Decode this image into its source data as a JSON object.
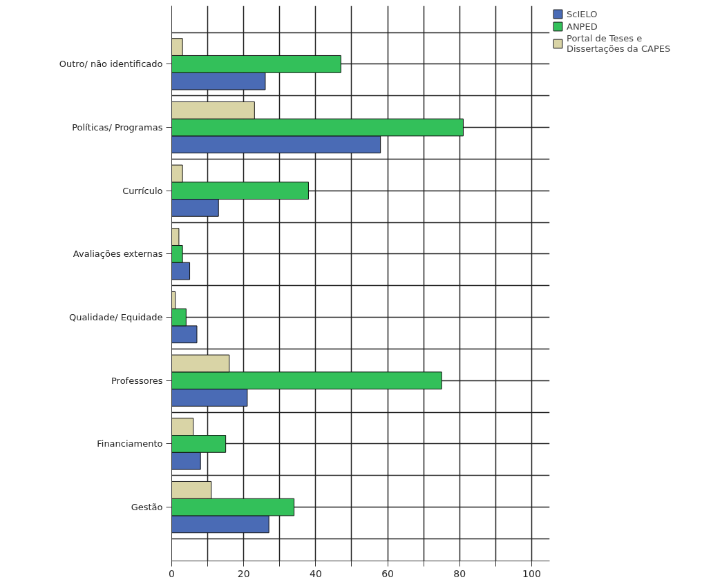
{
  "chart_data": {
    "type": "bar",
    "orientation": "horizontal",
    "categories": [
      "Outro/ não identificado",
      "Políticas/ Programas",
      "Currículo",
      "Avaliações externas",
      "Qualidade/ Equidade",
      "Professores",
      "Financiamento",
      "Gestão"
    ],
    "series": [
      {
        "name": "ScIELO",
        "color": "#4a6bb5",
        "values": [
          26,
          58,
          13,
          5,
          7,
          21,
          8,
          27
        ]
      },
      {
        "name": "ANPED",
        "color": "#33c05a",
        "values": [
          47,
          81,
          38,
          3,
          4,
          75,
          15,
          34
        ]
      },
      {
        "name": "Portal de Teses e Dissertações da CAPES",
        "color": "#d9d4a6",
        "values": [
          3,
          23,
          3,
          2,
          1,
          16,
          6,
          11
        ]
      }
    ],
    "xlim": [
      0,
      105
    ],
    "xticks": [
      0,
      {
        "value": 10,
        "label": null
      },
      20,
      {
        "value": 30,
        "label": null
      },
      40,
      {
        "value": 50,
        "label": null
      },
      60,
      {
        "value": 70,
        "label": null
      },
      80,
      {
        "value": 90,
        "label": null
      },
      100
    ],
    "grid": true,
    "legend": "top right"
  }
}
